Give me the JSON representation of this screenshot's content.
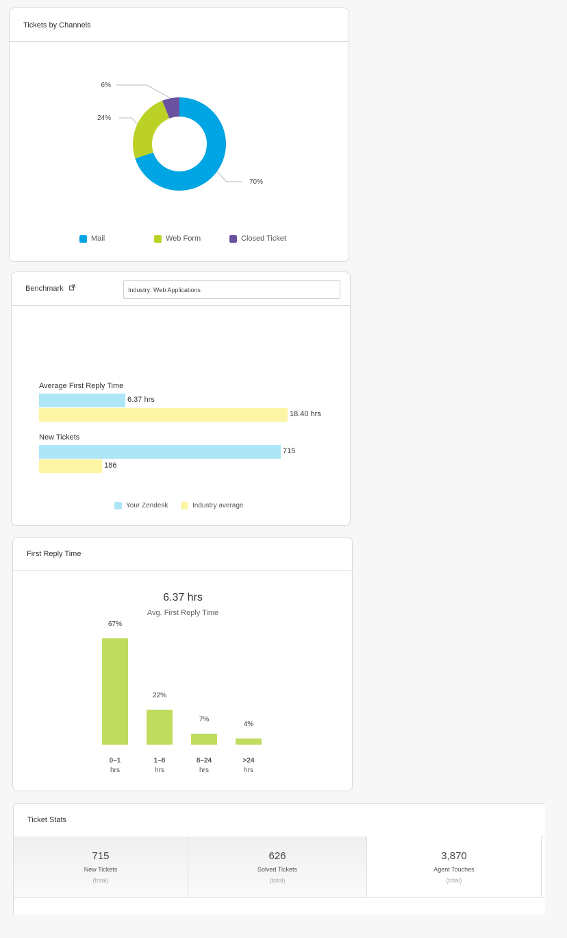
{
  "channels": {
    "title": "Tickets by Channels",
    "legend": [
      {
        "label": "Mail",
        "color": "#00a5e3"
      },
      {
        "label": "Web Form",
        "color": "#bcd125"
      },
      {
        "label": "Closed Ticket",
        "color": "#6a52a0"
      }
    ]
  },
  "benchmark": {
    "title": "Benchmark",
    "industry_value": "Industry: Web Applications",
    "legend": [
      {
        "label": "Your Zendesk",
        "color": "#aee6f8"
      },
      {
        "label": "Industry average",
        "color": "#fdf5a6"
      }
    ]
  },
  "first_reply": {
    "title": "First Reply Time",
    "avg_value": "6.37 hrs",
    "avg_label": "Avg. First Reply Time",
    "unit_label": "hrs"
  },
  "ticket_stats": {
    "title": "Ticket Stats",
    "items": [
      {
        "value": "715",
        "label": "New Tickets",
        "sub": "(total)"
      },
      {
        "value": "626",
        "label": "Solved Tickets",
        "sub": "(total)"
      },
      {
        "value": "3,870",
        "label": "Agent Touches",
        "sub": "(total)"
      }
    ]
  },
  "chart_data": [
    {
      "type": "pie",
      "title": "Tickets by Channels",
      "slices": [
        {
          "name": "Mail",
          "value": 70,
          "label": "70%",
          "color": "#00a5e3"
        },
        {
          "name": "Web Form",
          "value": 24,
          "label": "24%",
          "color": "#bcd125"
        },
        {
          "name": "Closed Ticket",
          "value": 6,
          "label": "6%",
          "color": "#6a52a0"
        }
      ]
    },
    {
      "type": "bar",
      "categories": [
        "Average First Reply Time",
        "New Tickets"
      ],
      "series": [
        {
          "name": "Your Zendesk",
          "values": [
            6.37,
            715
          ],
          "labels": [
            "6.37 hrs",
            "715"
          ],
          "color": "#aee6f8"
        },
        {
          "name": "Industry average",
          "values": [
            18.4,
            186
          ],
          "labels": [
            "18.40 hrs",
            "186"
          ],
          "color": "#fdf5a6"
        }
      ]
    },
    {
      "type": "bar",
      "title": "First Reply Time",
      "categories": [
        "0–1",
        "1–8",
        "8–24",
        ">24"
      ],
      "values": [
        67,
        22,
        7,
        4
      ],
      "labels": [
        "67%",
        "22%",
        "7%",
        "4%"
      ],
      "color": "#bfdc5e"
    }
  ]
}
